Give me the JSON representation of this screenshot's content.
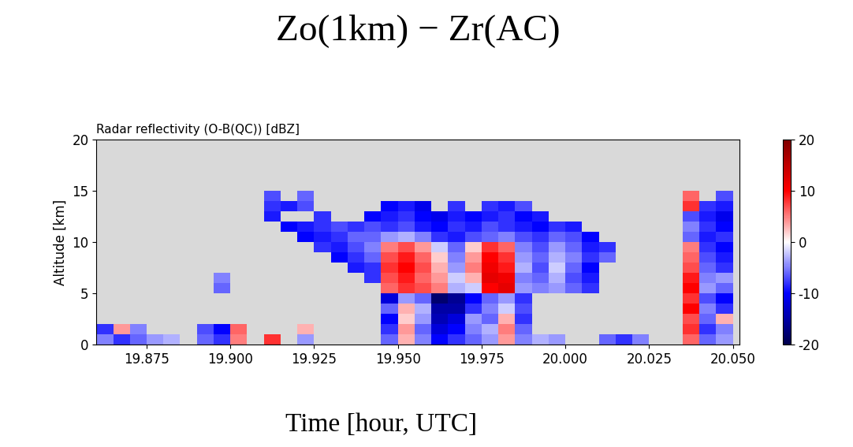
{
  "chart_data": {
    "type": "heatmap",
    "title": "Zo(1km) − Zr(AC)",
    "subtitle": "Radar reflectivity (O-B(QC)) [dBZ]",
    "x_label": "Time [hour, UTC]",
    "y_label": "Altitude [km]",
    "xlim": [
      19.86,
      20.052
    ],
    "xticks": [
      19.875,
      {
        "value": 19.9,
        "label": "19.900"
      },
      19.925,
      {
        "value": 19.95,
        "label": "19.950"
      },
      19.975,
      {
        "value": 20.0,
        "label": "20.000"
      },
      20.025,
      {
        "value": 20.05,
        "label": "20.050"
      }
    ],
    "ylim": [
      0,
      20
    ],
    "yticks": [
      0,
      5,
      10,
      15,
      20
    ],
    "x_edges": [
      19.86,
      19.865,
      19.87,
      19.875,
      19.88,
      19.885,
      19.89,
      19.895,
      19.9,
      19.905,
      19.91,
      19.915,
      19.92,
      19.925,
      19.93,
      19.935,
      19.94,
      19.945,
      19.95,
      19.955,
      19.96,
      19.965,
      19.97,
      19.975,
      19.98,
      19.985,
      19.99,
      19.995,
      20.0,
      20.005,
      20.01,
      20.015,
      20.02,
      20.025,
      20.03,
      20.035,
      20.04,
      20.045,
      20.05
    ],
    "y_edges": [
      0,
      1,
      2,
      3,
      4,
      5,
      6,
      7,
      8,
      9,
      10,
      11,
      12,
      13,
      14,
      15
    ],
    "cells": [
      [
        -5,
        -8,
        -6,
        -4,
        -3,
        null,
        -6,
        -8,
        5,
        null,
        8,
        null,
        -4,
        null,
        null,
        null,
        null,
        -6,
        3,
        -5,
        -10,
        -8,
        -6,
        -4,
        4,
        -5,
        -3,
        -4,
        null,
        null,
        -6,
        -8,
        -5,
        null,
        null,
        6,
        -6,
        -4
      ],
      [
        -8,
        4,
        -5,
        null,
        null,
        null,
        -7,
        -10,
        6,
        null,
        null,
        null,
        3,
        null,
        null,
        null,
        null,
        -8,
        4,
        -6,
        -12,
        -10,
        -5,
        -3,
        5,
        -6,
        null,
        null,
        null,
        null,
        null,
        null,
        null,
        null,
        null,
        8,
        -8,
        -5
      ],
      [
        null,
        null,
        null,
        null,
        null,
        null,
        null,
        null,
        null,
        null,
        null,
        null,
        null,
        null,
        null,
        null,
        null,
        -10,
        2,
        -4,
        -14,
        -12,
        -4,
        -6,
        3,
        -8,
        null,
        null,
        null,
        null,
        null,
        null,
        null,
        null,
        null,
        7,
        -6,
        3
      ],
      [
        null,
        null,
        null,
        null,
        null,
        null,
        null,
        null,
        null,
        null,
        null,
        null,
        null,
        null,
        null,
        null,
        null,
        -6,
        3,
        -3,
        -15,
        -15,
        -8,
        -5,
        -2,
        -7,
        null,
        null,
        null,
        null,
        null,
        null,
        null,
        null,
        null,
        10,
        -5,
        -8
      ],
      [
        null,
        null,
        null,
        null,
        null,
        null,
        null,
        null,
        null,
        null,
        null,
        null,
        null,
        null,
        null,
        null,
        null,
        -12,
        -4,
        -6,
        -18,
        -16,
        -10,
        -6,
        -4,
        -8,
        null,
        null,
        null,
        null,
        null,
        null,
        null,
        null,
        null,
        8,
        -7,
        -10
      ],
      [
        null,
        null,
        null,
        null,
        null,
        null,
        null,
        -6,
        null,
        null,
        null,
        null,
        null,
        null,
        null,
        null,
        null,
        6,
        8,
        7,
        5,
        -3,
        -2,
        10,
        12,
        -4,
        -5,
        -4,
        -6,
        -8,
        null,
        null,
        null,
        null,
        null,
        10,
        -4,
        -6
      ],
      [
        null,
        null,
        null,
        null,
        null,
        null,
        null,
        -5,
        null,
        null,
        null,
        null,
        null,
        null,
        null,
        null,
        -8,
        7,
        9,
        6,
        4,
        -2,
        3,
        12,
        11,
        -5,
        -6,
        -3,
        -7,
        -9,
        null,
        null,
        null,
        null,
        null,
        9,
        -5,
        -4
      ],
      [
        null,
        null,
        null,
        null,
        null,
        null,
        null,
        null,
        null,
        null,
        null,
        null,
        null,
        null,
        null,
        -9,
        -8,
        8,
        10,
        7,
        3,
        -4,
        5,
        11,
        9,
        -3,
        -7,
        -2,
        -6,
        -10,
        null,
        null,
        null,
        null,
        null,
        7,
        -6,
        -8
      ],
      [
        null,
        null,
        null,
        null,
        null,
        null,
        null,
        null,
        null,
        null,
        null,
        null,
        null,
        null,
        -10,
        -8,
        -6,
        7,
        9,
        6,
        2,
        -5,
        4,
        10,
        8,
        -4,
        -6,
        -3,
        -5,
        -8,
        -6,
        null,
        null,
        null,
        null,
        6,
        -7,
        -9
      ],
      [
        null,
        null,
        null,
        null,
        null,
        null,
        null,
        null,
        null,
        null,
        null,
        null,
        null,
        -8,
        -9,
        -7,
        -5,
        5,
        7,
        4,
        -2,
        -6,
        2,
        8,
        6,
        -5,
        -7,
        -4,
        -6,
        -9,
        -8,
        null,
        null,
        null,
        null,
        5,
        -8,
        -10
      ],
      [
        null,
        null,
        null,
        null,
        null,
        null,
        null,
        null,
        null,
        null,
        null,
        null,
        -10,
        -9,
        -8,
        -6,
        -6,
        -4,
        -3,
        -5,
        -8,
        -9,
        -7,
        -6,
        -5,
        -7,
        -8,
        -6,
        -7,
        -10,
        null,
        null,
        null,
        null,
        null,
        -6,
        -9,
        -8
      ],
      [
        null,
        null,
        null,
        null,
        null,
        null,
        null,
        null,
        null,
        null,
        null,
        -10,
        -9,
        -8,
        -7,
        -8,
        -7,
        -8,
        -7,
        -9,
        -10,
        -8,
        -9,
        -7,
        -8,
        -9,
        -10,
        -8,
        -9,
        null,
        null,
        null,
        null,
        null,
        null,
        -5,
        -8,
        -10
      ],
      [
        null,
        null,
        null,
        null,
        null,
        null,
        null,
        null,
        null,
        null,
        -9,
        null,
        null,
        -8,
        null,
        null,
        -10,
        -9,
        -8,
        -10,
        -11,
        -9,
        -10,
        -9,
        -8,
        -10,
        -9,
        null,
        null,
        null,
        null,
        null,
        null,
        null,
        null,
        -7,
        -9,
        -11
      ],
      [
        null,
        null,
        null,
        null,
        null,
        null,
        null,
        null,
        null,
        null,
        -8,
        -9,
        -7,
        null,
        null,
        null,
        null,
        -10,
        -9,
        -11,
        null,
        -8,
        null,
        -8,
        -9,
        -7,
        null,
        null,
        null,
        null,
        null,
        null,
        null,
        null,
        null,
        8,
        -8,
        -9
      ],
      [
        null,
        null,
        null,
        null,
        null,
        null,
        null,
        null,
        null,
        null,
        -7,
        null,
        -6,
        null,
        null,
        null,
        null,
        null,
        null,
        null,
        null,
        null,
        null,
        null,
        null,
        null,
        null,
        null,
        null,
        null,
        null,
        null,
        null,
        null,
        null,
        6,
        null,
        -7
      ]
    ],
    "colorbar_range": [
      -20,
      20
    ],
    "colorbar_ticks": [
      -20,
      -10,
      0,
      10,
      20
    ]
  }
}
